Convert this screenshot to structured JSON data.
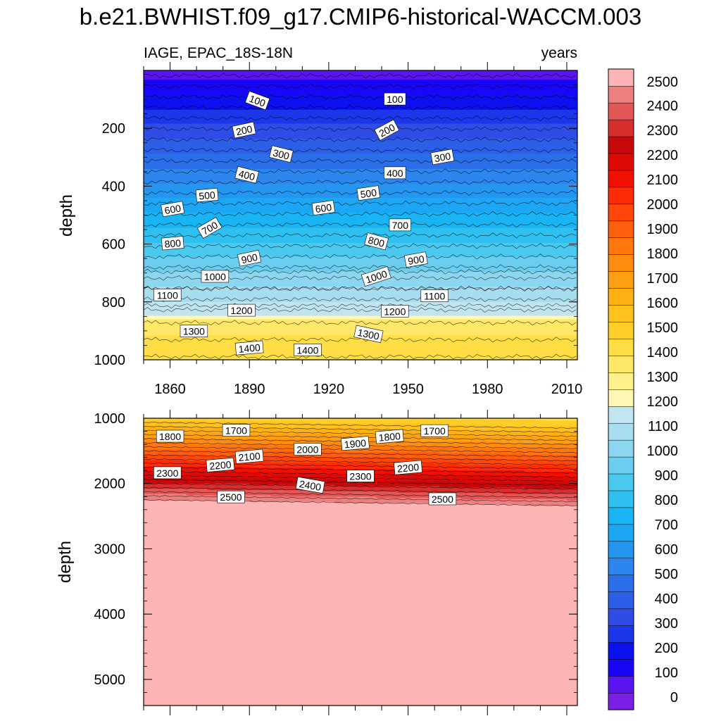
{
  "chart_data": {
    "type": "heatmap",
    "title": "b.e21.BWHIST.f09_g17.CMIP6-historical-WACCM.003",
    "variable_label": "IAGE, EPAC_18S-18N",
    "units_label": "years",
    "colorbar": {
      "levels": [
        0,
        100,
        200,
        300,
        400,
        500,
        600,
        700,
        800,
        900,
        1000,
        1100,
        1200,
        1300,
        1400,
        1500,
        1600,
        1700,
        1800,
        1900,
        2000,
        2100,
        2200,
        2300,
        2400,
        2500
      ],
      "tick_labels": [
        "0",
        "100",
        "200",
        "300",
        "400",
        "500",
        "600",
        "700",
        "800",
        "900",
        "1000",
        "1100",
        "1200",
        "1300",
        "1400",
        "1500",
        "1600",
        "1700",
        "1800",
        "1900",
        "2000",
        "2100",
        "2200",
        "2300",
        "2400",
        "2500"
      ],
      "colors": [
        "#7b1fe6",
        "#5a14f0",
        "#1a06f7",
        "#0b10ee",
        "#1c36ea",
        "#2f4de6",
        "#2c5ee8",
        "#2a6ee9",
        "#2d86ee",
        "#2496f0",
        "#1da6f3",
        "#18b4f4",
        "#2fc0f0",
        "#4ac8ee",
        "#6bcdef",
        "#8dd6ef",
        "#a7ddee",
        "#c0e5f1",
        "#fff7b4",
        "#fff08c",
        "#ffe868",
        "#ffdd44",
        "#ffce28",
        "#ffc11c",
        "#ffb114",
        "#ffa012",
        "#ff8c0e",
        "#ff760e",
        "#ff5e0c",
        "#ff470a",
        "#ff2a06",
        "#f21003",
        "#dd0a06",
        "#c9080a",
        "#d82e2e",
        "#e25656",
        "#ed7f7f",
        "#fcb4b4"
      ]
    },
    "top_panel": {
      "ylabel": "depth",
      "ylim": [
        1000,
        0
      ],
      "yticks": [
        "200",
        "400",
        "600",
        "800",
        "1000"
      ],
      "xlim": [
        1850,
        2014
      ],
      "xticks": [
        "1860",
        "1890",
        "1920",
        "1950",
        "1980",
        "2010"
      ],
      "contour_labels": [
        {
          "text": "100",
          "year": 1893,
          "depth": 105,
          "rot": 20
        },
        {
          "text": "100",
          "year": 1945,
          "depth": 100,
          "rot": 0
        },
        {
          "text": "200",
          "year": 1888,
          "depth": 207,
          "rot": -12
        },
        {
          "text": "200",
          "year": 1942,
          "depth": 207,
          "rot": -28
        },
        {
          "text": "300",
          "year": 1902,
          "depth": 290,
          "rot": 14
        },
        {
          "text": "300",
          "year": 1963,
          "depth": 300,
          "rot": -10
        },
        {
          "text": "400",
          "year": 1889,
          "depth": 362,
          "rot": 14
        },
        {
          "text": "400",
          "year": 1945,
          "depth": 355,
          "rot": 0
        },
        {
          "text": "500",
          "year": 1874,
          "depth": 432,
          "rot": -5
        },
        {
          "text": "500",
          "year": 1935,
          "depth": 425,
          "rot": -8
        },
        {
          "text": "600",
          "year": 1861,
          "depth": 480,
          "rot": -10
        },
        {
          "text": "600",
          "year": 1918,
          "depth": 476,
          "rot": -8
        },
        {
          "text": "700",
          "year": 1875,
          "depth": 545,
          "rot": -30
        },
        {
          "text": "700",
          "year": 1947,
          "depth": 535,
          "rot": 0
        },
        {
          "text": "800",
          "year": 1861,
          "depth": 598,
          "rot": -5
        },
        {
          "text": "800",
          "year": 1938,
          "depth": 592,
          "rot": 15
        },
        {
          "text": "900",
          "year": 1890,
          "depth": 650,
          "rot": -12
        },
        {
          "text": "900",
          "year": 1953,
          "depth": 655,
          "rot": -10
        },
        {
          "text": "1000",
          "year": 1877,
          "depth": 713,
          "rot": 0
        },
        {
          "text": "1000",
          "year": 1938,
          "depth": 713,
          "rot": -18
        },
        {
          "text": "1100",
          "year": 1859,
          "depth": 777,
          "rot": 0
        },
        {
          "text": "1100",
          "year": 1960,
          "depth": 780,
          "rot": 0
        },
        {
          "text": "1200",
          "year": 1887,
          "depth": 830,
          "rot": 0
        },
        {
          "text": "1200",
          "year": 1945,
          "depth": 833,
          "rot": 0
        },
        {
          "text": "1300",
          "year": 1869,
          "depth": 902,
          "rot": 0
        },
        {
          "text": "1300",
          "year": 1935,
          "depth": 912,
          "rot": 12
        },
        {
          "text": "1400",
          "year": 1890,
          "depth": 960,
          "rot": -5
        },
        {
          "text": "1400",
          "year": 1912,
          "depth": 967,
          "rot": 0
        }
      ]
    },
    "bottom_panel": {
      "ylabel": "depth",
      "ylim": [
        1000,
        5400
      ],
      "yticks": [
        "1000",
        "2000",
        "3000",
        "4000",
        "5000"
      ],
      "xlim": [
        1850,
        2014
      ],
      "contour_labels": [
        {
          "text": "1800",
          "year": 1860,
          "depth": 1280,
          "rot": 0
        },
        {
          "text": "1700",
          "year": 1885,
          "depth": 1190,
          "rot": 0
        },
        {
          "text": "2100",
          "year": 1890,
          "depth": 1590,
          "rot": -5
        },
        {
          "text": "2000",
          "year": 1912,
          "depth": 1480,
          "rot": 0
        },
        {
          "text": "1900",
          "year": 1930,
          "depth": 1390,
          "rot": -5
        },
        {
          "text": "1800",
          "year": 1943,
          "depth": 1285,
          "rot": -5
        },
        {
          "text": "1700",
          "year": 1960,
          "depth": 1195,
          "rot": 0
        },
        {
          "text": "2300",
          "year": 1859,
          "depth": 1840,
          "rot": 0
        },
        {
          "text": "2200",
          "year": 1879,
          "depth": 1720,
          "rot": -5
        },
        {
          "text": "2400",
          "year": 1913,
          "depth": 2030,
          "rot": 10
        },
        {
          "text": "2300",
          "year": 1932,
          "depth": 1890,
          "rot": 0
        },
        {
          "text": "2200",
          "year": 1950,
          "depth": 1760,
          "rot": -5
        },
        {
          "text": "2500",
          "year": 1883,
          "depth": 2210,
          "rot": 0
        },
        {
          "text": "2500",
          "year": 1963,
          "depth": 2240,
          "rot": 0
        }
      ]
    }
  }
}
